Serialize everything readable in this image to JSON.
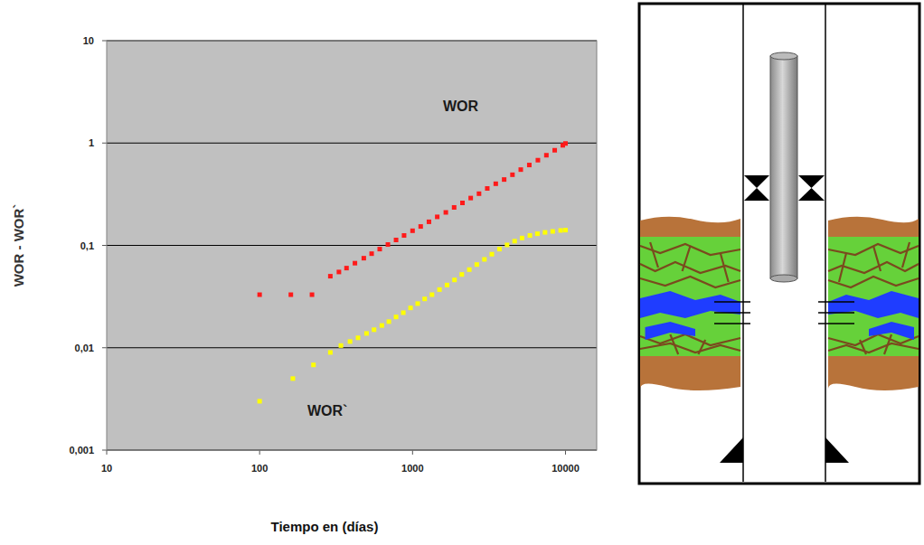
{
  "chart_data": {
    "type": "scatter",
    "x_label": "Tiempo en (días)",
    "y_label": "WOR - WOR`",
    "log": true,
    "grid": true,
    "xlim": [
      10,
      16000
    ],
    "xticks": [
      10,
      100,
      1000,
      10000
    ],
    "ylim": [
      0.001,
      10
    ],
    "yticks": [
      {
        "value": 0.001,
        "label": "0,001"
      },
      {
        "value": 0.01,
        "label": "0,01"
      },
      {
        "value": 0.1,
        "label": "0,1"
      },
      1,
      10
    ],
    "series": [
      {
        "name": "WOR",
        "color": "#ff1a1a",
        "marker": "square",
        "x": [
          100,
          160,
          220,
          290,
          330,
          370,
          420,
          480,
          540,
          610,
          690,
          780,
          880,
          1000,
          1130,
          1280,
          1450,
          1650,
          1870,
          2120,
          2400,
          2720,
          3080,
          3500,
          3970,
          4500,
          5100,
          5800,
          6600,
          7500,
          8500,
          9600,
          10000
        ],
        "values": [
          0.033,
          0.033,
          0.033,
          0.05,
          0.055,
          0.06,
          0.067,
          0.075,
          0.083,
          0.092,
          0.102,
          0.113,
          0.125,
          0.139,
          0.153,
          0.17,
          0.19,
          0.21,
          0.235,
          0.26,
          0.29,
          0.32,
          0.36,
          0.4,
          0.44,
          0.49,
          0.55,
          0.61,
          0.68,
          0.76,
          0.85,
          0.95,
          0.99
        ]
      },
      {
        "name": "WOR`",
        "color": "#ffff00",
        "marker": "square",
        "x": [
          100,
          165,
          225,
          290,
          340,
          390,
          440,
          500,
          560,
          630,
          700,
          780,
          870,
          970,
          1080,
          1200,
          1340,
          1500,
          1680,
          1880,
          2100,
          2350,
          2630,
          2950,
          3300,
          3700,
          4150,
          4650,
          5200,
          5850,
          6550,
          7350,
          8250,
          9300,
          10000
        ],
        "values": [
          0.003,
          0.005,
          0.0068,
          0.009,
          0.0105,
          0.0115,
          0.0125,
          0.0138,
          0.015,
          0.0165,
          0.018,
          0.02,
          0.022,
          0.0245,
          0.027,
          0.03,
          0.033,
          0.037,
          0.041,
          0.046,
          0.052,
          0.058,
          0.065,
          0.073,
          0.082,
          0.092,
          0.101,
          0.11,
          0.118,
          0.125,
          0.13,
          0.134,
          0.137,
          0.14,
          0.141
        ]
      }
    ]
  }
}
